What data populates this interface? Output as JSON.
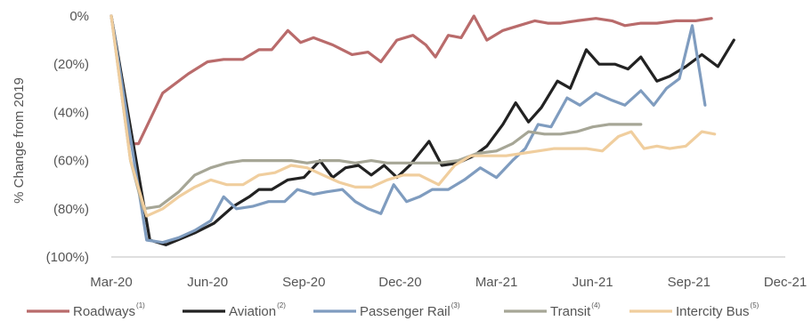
{
  "chart_data": {
    "type": "line",
    "ylabel": "% Change from 2019",
    "ylim": [
      -100,
      0
    ],
    "yticks": [
      {
        "value": 0,
        "label": "0%"
      },
      {
        "value": -20,
        "label": "(20%)"
      },
      {
        "value": -40,
        "label": "(40%)"
      },
      {
        "value": -60,
        "label": "(60%)"
      },
      {
        "value": -80,
        "label": "(80%)"
      },
      {
        "value": -100,
        "label": "(100%)"
      }
    ],
    "xlim": [
      0,
      21
    ],
    "xticks": [
      {
        "value": 0,
        "label": "Mar-20"
      },
      {
        "value": 3,
        "label": "Jun-20"
      },
      {
        "value": 6,
        "label": "Sep-20"
      },
      {
        "value": 9,
        "label": "Dec-20"
      },
      {
        "value": 12,
        "label": "Mar-21"
      },
      {
        "value": 15,
        "label": "Jun-21"
      },
      {
        "value": 18,
        "label": "Sep-21"
      },
      {
        "value": 21,
        "label": "Dec-21"
      }
    ],
    "grid": false,
    "legend_position": "bottom",
    "series": [
      {
        "name": "Roadways",
        "note": "(1)",
        "color": "#b96b6b",
        "points": [
          [
            0,
            0
          ],
          [
            0.6,
            -53
          ],
          [
            0.85,
            -53
          ],
          [
            1.6,
            -32
          ],
          [
            2.4,
            -24
          ],
          [
            3.0,
            -19
          ],
          [
            3.5,
            -18
          ],
          [
            4.1,
            -18
          ],
          [
            4.6,
            -14
          ],
          [
            5.0,
            -14
          ],
          [
            5.5,
            -6
          ],
          [
            5.9,
            -11
          ],
          [
            6.3,
            -9
          ],
          [
            6.9,
            -12
          ],
          [
            7.5,
            -16
          ],
          [
            8.0,
            -15
          ],
          [
            8.4,
            -19
          ],
          [
            8.9,
            -10
          ],
          [
            9.4,
            -8
          ],
          [
            9.8,
            -12
          ],
          [
            10.1,
            -17
          ],
          [
            10.5,
            -8
          ],
          [
            10.9,
            -9
          ],
          [
            11.3,
            0
          ],
          [
            11.7,
            -10
          ],
          [
            12.2,
            -6
          ],
          [
            12.7,
            -4
          ],
          [
            13.2,
            -2
          ],
          [
            13.6,
            -3
          ],
          [
            14.0,
            -3
          ],
          [
            14.5,
            -2
          ],
          [
            15.1,
            -1
          ],
          [
            15.6,
            -2
          ],
          [
            16.0,
            -4
          ],
          [
            16.5,
            -3
          ],
          [
            17.0,
            -3
          ],
          [
            17.6,
            -2
          ],
          [
            18.2,
            -2
          ],
          [
            18.7,
            -1
          ]
        ]
      },
      {
        "name": "Aviation",
        "note": "(2)",
        "color": "#222222",
        "points": [
          [
            0,
            0
          ],
          [
            1.2,
            -93
          ],
          [
            1.7,
            -95
          ],
          [
            2.6,
            -90
          ],
          [
            3.2,
            -86
          ],
          [
            3.8,
            -79
          ],
          [
            4.3,
            -75
          ],
          [
            4.6,
            -72
          ],
          [
            5.0,
            -72
          ],
          [
            5.5,
            -68
          ],
          [
            6.0,
            -67
          ],
          [
            6.5,
            -60
          ],
          [
            6.9,
            -67
          ],
          [
            7.3,
            -63
          ],
          [
            7.7,
            -62
          ],
          [
            8.1,
            -66
          ],
          [
            8.5,
            -62
          ],
          [
            8.9,
            -67
          ],
          [
            9.3,
            -62
          ],
          [
            9.9,
            -52
          ],
          [
            10.3,
            -62
          ],
          [
            10.8,
            -61
          ],
          [
            11.3,
            -58
          ],
          [
            11.7,
            -54
          ],
          [
            12.2,
            -45
          ],
          [
            12.6,
            -36
          ],
          [
            13.0,
            -44
          ],
          [
            13.4,
            -38
          ],
          [
            13.9,
            -27
          ],
          [
            14.3,
            -30
          ],
          [
            14.8,
            -14
          ],
          [
            15.2,
            -20
          ],
          [
            15.7,
            -20
          ],
          [
            16.1,
            -22
          ],
          [
            16.5,
            -17
          ],
          [
            17.0,
            -27
          ],
          [
            17.4,
            -25
          ],
          [
            17.9,
            -21
          ],
          [
            18.4,
            -16
          ],
          [
            18.9,
            -21
          ],
          [
            19.4,
            -10
          ]
        ]
      },
      {
        "name": "Passenger Rail",
        "note": "(3)",
        "color": "#7f9cbf",
        "points": [
          [
            0,
            0
          ],
          [
            1.1,
            -93
          ],
          [
            1.6,
            -94
          ],
          [
            2.1,
            -92
          ],
          [
            2.6,
            -89
          ],
          [
            3.1,
            -85
          ],
          [
            3.5,
            -75
          ],
          [
            3.9,
            -80
          ],
          [
            4.4,
            -79
          ],
          [
            4.9,
            -77
          ],
          [
            5.4,
            -77
          ],
          [
            5.8,
            -72
          ],
          [
            6.3,
            -74
          ],
          [
            6.7,
            -73
          ],
          [
            7.2,
            -72
          ],
          [
            7.6,
            -77
          ],
          [
            8.0,
            -80
          ],
          [
            8.4,
            -82
          ],
          [
            8.8,
            -70
          ],
          [
            9.2,
            -77
          ],
          [
            9.6,
            -75
          ],
          [
            10.0,
            -72
          ],
          [
            10.5,
            -72
          ],
          [
            11.0,
            -68
          ],
          [
            11.5,
            -63
          ],
          [
            12.0,
            -67
          ],
          [
            12.5,
            -60
          ],
          [
            12.9,
            -55
          ],
          [
            13.3,
            -45
          ],
          [
            13.7,
            -46
          ],
          [
            14.2,
            -34
          ],
          [
            14.6,
            -37
          ],
          [
            15.1,
            -32
          ],
          [
            15.6,
            -35
          ],
          [
            16.0,
            -37
          ],
          [
            16.5,
            -31
          ],
          [
            16.9,
            -37
          ],
          [
            17.3,
            -30
          ],
          [
            17.7,
            -26
          ],
          [
            18.1,
            -4
          ],
          [
            18.5,
            -37
          ]
        ]
      },
      {
        "name": "Transit",
        "note": "(4)",
        "color": "#a6a696",
        "points": [
          [
            0,
            0
          ],
          [
            0.6,
            -60
          ],
          [
            1.0,
            -80
          ],
          [
            1.5,
            -79
          ],
          [
            2.1,
            -73
          ],
          [
            2.6,
            -66
          ],
          [
            3.1,
            -63
          ],
          [
            3.6,
            -61
          ],
          [
            4.1,
            -60
          ],
          [
            4.6,
            -60
          ],
          [
            5.1,
            -60
          ],
          [
            5.6,
            -60
          ],
          [
            6.1,
            -61
          ],
          [
            6.6,
            -60
          ],
          [
            7.1,
            -60
          ],
          [
            7.6,
            -61
          ],
          [
            8.1,
            -60
          ],
          [
            8.6,
            -61
          ],
          [
            9.1,
            -61
          ],
          [
            9.6,
            -61
          ],
          [
            10.2,
            -61
          ],
          [
            10.8,
            -60
          ],
          [
            11.4,
            -57
          ],
          [
            12.0,
            -56
          ],
          [
            12.5,
            -53
          ],
          [
            13.0,
            -48
          ],
          [
            13.5,
            -49
          ],
          [
            14.0,
            -49
          ],
          [
            14.5,
            -48
          ],
          [
            15.0,
            -46
          ],
          [
            15.5,
            -45
          ],
          [
            16.0,
            -45
          ],
          [
            16.5,
            -45
          ]
        ]
      },
      {
        "name": "Intercity Bus",
        "note": "(5)",
        "color": "#f0ce9e",
        "points": [
          [
            0,
            0
          ],
          [
            0.6,
            -60
          ],
          [
            1.1,
            -83
          ],
          [
            1.6,
            -80
          ],
          [
            2.1,
            -75
          ],
          [
            2.6,
            -71
          ],
          [
            3.1,
            -68
          ],
          [
            3.6,
            -70
          ],
          [
            4.1,
            -70
          ],
          [
            4.6,
            -66
          ],
          [
            5.1,
            -65
          ],
          [
            5.6,
            -62
          ],
          [
            6.1,
            -63
          ],
          [
            6.6,
            -66
          ],
          [
            7.1,
            -69
          ],
          [
            7.6,
            -71
          ],
          [
            8.1,
            -71
          ],
          [
            8.6,
            -68
          ],
          [
            9.1,
            -66
          ],
          [
            9.6,
            -66
          ],
          [
            10.2,
            -70
          ],
          [
            10.7,
            -62
          ],
          [
            11.2,
            -58
          ],
          [
            11.8,
            -58
          ],
          [
            12.3,
            -58
          ],
          [
            12.8,
            -57
          ],
          [
            13.3,
            -56
          ],
          [
            13.8,
            -55
          ],
          [
            14.3,
            -55
          ],
          [
            14.8,
            -55
          ],
          [
            15.3,
            -56
          ],
          [
            15.8,
            -50
          ],
          [
            16.2,
            -48
          ],
          [
            16.6,
            -55
          ],
          [
            17.0,
            -54
          ],
          [
            17.4,
            -55
          ],
          [
            17.9,
            -54
          ],
          [
            18.4,
            -48
          ],
          [
            18.8,
            -49
          ]
        ]
      }
    ]
  }
}
